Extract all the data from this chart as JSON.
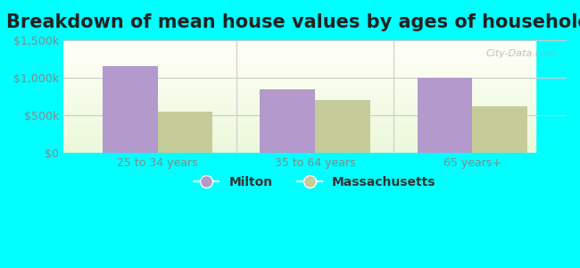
{
  "title": "Breakdown of mean house values by ages of householders",
  "categories": [
    "25 to 34 years",
    "35 to 64 years",
    "65 years+"
  ],
  "milton_values": [
    1150000,
    850000,
    1000000
  ],
  "mass_values": [
    550000,
    700000,
    620000
  ],
  "milton_color": "#b399cc",
  "mass_color": "#c5cc99",
  "background_color": "#00ffff",
  "ylim": [
    0,
    1500000
  ],
  "yticks": [
    0,
    500000,
    1000000,
    1500000
  ],
  "ytick_labels": [
    "$0",
    "$500k",
    "$1,000k",
    "$1,500k"
  ],
  "legend_labels": [
    "Milton",
    "Massachusetts"
  ],
  "bar_width": 0.35,
  "watermark": "City-Data.com",
  "title_fontsize": 15,
  "tick_color": "#888888",
  "grid_color": "#cccccc"
}
